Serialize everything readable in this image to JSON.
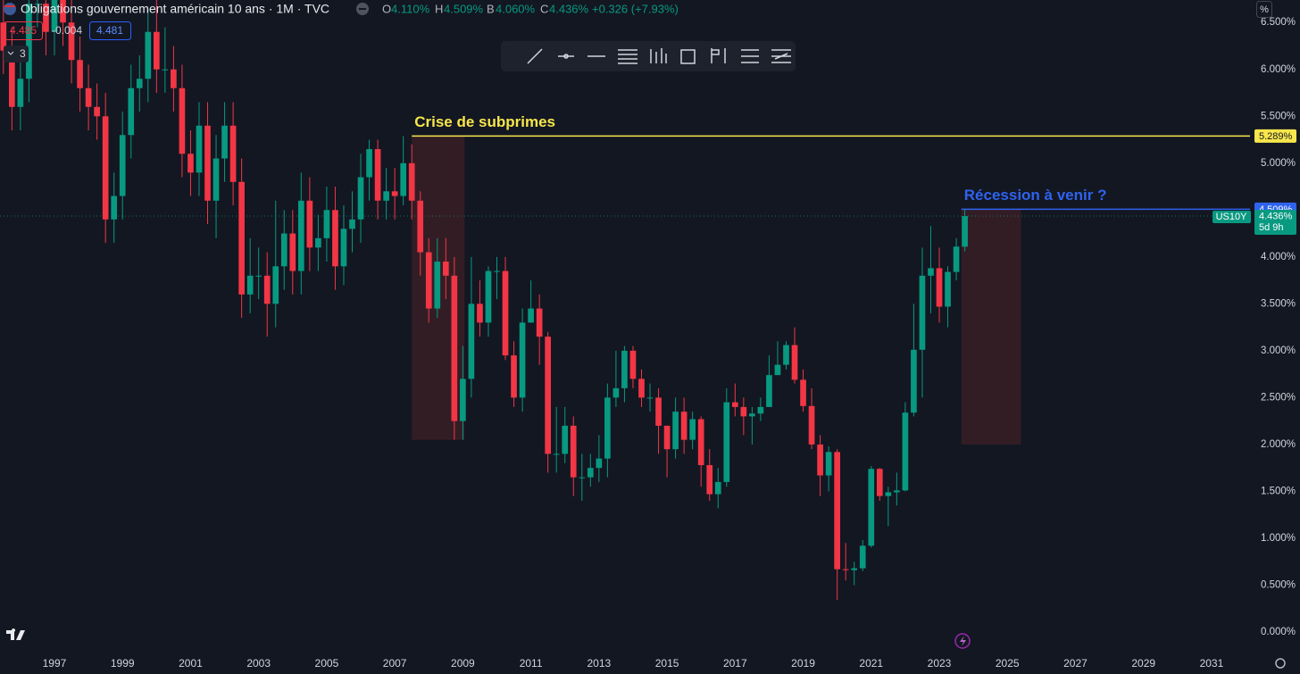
{
  "header": {
    "symbol_title": "Obligations gouvernement américain 10 ans · 1M · TVC",
    "ohlc": [
      {
        "key": "O",
        "value": "4.110%"
      },
      {
        "key": "H",
        "value": "4.509%"
      },
      {
        "key": "B",
        "value": "4.060%"
      },
      {
        "key": "C",
        "value": "4.436%"
      }
    ],
    "change": "+0.326 (+7.93%)",
    "bid": "4.485",
    "spread": "-0.004",
    "ask": "4.481",
    "indicators_count": "3",
    "scale_mode": "%"
  },
  "chart_data": {
    "type": "candlestick",
    "up_color": "#089981",
    "down_color": "#f23645",
    "grid": false,
    "x": [
      1995.5,
      1995.75,
      1996,
      1996.25,
      1996.5,
      1996.75,
      1997,
      1997.25,
      1997.5,
      1997.75,
      1998,
      1998.25,
      1998.5,
      1998.75,
      1999,
      1999.25,
      1999.5,
      1999.75,
      2000,
      2000.25,
      2000.5,
      2000.75,
      2001,
      2001.25,
      2001.5,
      2001.75,
      2002,
      2002.25,
      2002.5,
      2002.75,
      2003,
      2003.25,
      2003.5,
      2003.75,
      2004,
      2004.25,
      2004.5,
      2004.75,
      2005,
      2005.25,
      2005.5,
      2005.75,
      2006,
      2006.25,
      2006.5,
      2006.75,
      2007,
      2007.25,
      2007.5,
      2007.75,
      2008,
      2008.25,
      2008.5,
      2008.75,
      2009,
      2009.25,
      2009.5,
      2009.75,
      2010,
      2010.25,
      2010.5,
      2010.75,
      2011,
      2011.25,
      2011.5,
      2011.75,
      2012,
      2012.25,
      2012.5,
      2012.75,
      2013,
      2013.25,
      2013.5,
      2013.75,
      2014,
      2014.25,
      2014.5,
      2014.75,
      2015,
      2015.25,
      2015.5,
      2015.75,
      2016,
      2016.25,
      2016.5,
      2016.75,
      2017,
      2017.25,
      2017.5,
      2017.75,
      2018,
      2018.25,
      2018.5,
      2018.75,
      2019,
      2019.25,
      2019.5,
      2019.75,
      2020,
      2020.25,
      2020.5,
      2020.75,
      2021,
      2021.25,
      2021.5,
      2021.75,
      2022,
      2022.25,
      2022.5,
      2022.75,
      2023,
      2023.25,
      2023.5,
      2023.75
    ],
    "open": [
      6.5,
      6.2,
      5.6,
      5.9,
      6.7,
      6.7,
      6.4,
      6.9,
      6.5,
      6.1,
      5.8,
      5.6,
      5.5,
      4.4,
      4.65,
      5.3,
      5.8,
      5.9,
      6.4,
      6.0,
      6.0,
      5.8,
      5.1,
      4.9,
      5.4,
      4.6,
      5.05,
      5.4,
      4.8,
      3.6,
      3.8,
      3.8,
      3.5,
      3.9,
      4.25,
      3.85,
      4.6,
      4.1,
      4.2,
      4.5,
      3.9,
      4.3,
      4.4,
      4.85,
      5.15,
      4.6,
      4.7,
      4.65,
      5.0,
      4.6,
      4.05,
      3.45,
      3.95,
      3.8,
      2.25,
      2.7,
      3.5,
      3.3,
      3.85,
      3.85,
      2.95,
      2.5,
      3.3,
      3.45,
      3.15,
      1.9,
      1.9,
      2.2,
      1.65,
      1.65,
      1.75,
      1.85,
      2.5,
      2.6,
      3.0,
      2.7,
      2.5,
      2.5,
      2.2,
      1.95,
      2.35,
      2.05,
      2.27,
      1.78,
      1.47,
      1.6,
      2.45,
      2.4,
      2.3,
      2.33,
      2.4,
      2.74,
      2.85,
      3.06,
      2.69,
      2.41,
      2.0,
      1.67,
      1.92,
      0.67,
      0.66,
      0.68,
      0.92,
      1.74,
      1.45,
      1.49,
      1.51,
      2.34,
      3.01,
      3.8,
      3.88,
      3.47,
      3.84,
      4.11
    ],
    "high": [
      6.75,
      6.45,
      6.15,
      6.95,
      7.0,
      6.95,
      7.15,
      7.15,
      6.75,
      6.35,
      6.05,
      5.85,
      5.75,
      4.9,
      5.55,
      6.05,
      6.15,
      6.65,
      6.8,
      6.45,
      6.25,
      6.05,
      5.35,
      5.65,
      5.65,
      5.3,
      5.65,
      5.65,
      5.05,
      4.2,
      4.1,
      4.05,
      4.6,
      4.5,
      4.5,
      4.9,
      4.85,
      4.45,
      4.75,
      4.75,
      4.55,
      4.7,
      5.1,
      5.25,
      5.25,
      4.95,
      4.95,
      5.289,
      5.2,
      4.7,
      4.2,
      4.2,
      4.2,
      4.0,
      3.05,
      4.0,
      3.75,
      3.9,
      4.0,
      4.0,
      3.1,
      3.45,
      3.75,
      3.6,
      3.2,
      2.4,
      2.4,
      2.3,
      1.9,
      1.9,
      2.1,
      2.65,
      3.0,
      3.05,
      3.05,
      2.8,
      2.65,
      2.6,
      2.2,
      2.5,
      2.5,
      2.35,
      2.3,
      1.95,
      1.75,
      2.6,
      2.65,
      2.5,
      2.4,
      2.5,
      2.95,
      3.1,
      3.1,
      3.25,
      2.8,
      2.6,
      2.1,
      1.98,
      1.95,
      0.95,
      0.75,
      0.98,
      1.77,
      1.75,
      1.55,
      1.7,
      2.45,
      3.5,
      4.1,
      4.33,
      4.1,
      3.9,
      4.2,
      4.509
    ],
    "low": [
      5.95,
      5.35,
      5.35,
      5.65,
      6.45,
      6.15,
      6.15,
      6.25,
      5.85,
      5.55,
      5.35,
      5.25,
      4.15,
      4.15,
      4.4,
      5.05,
      5.55,
      5.65,
      5.75,
      5.75,
      5.55,
      4.85,
      4.65,
      4.65,
      4.35,
      4.2,
      4.8,
      4.55,
      3.35,
      3.4,
      3.55,
      3.15,
      3.25,
      3.65,
      3.6,
      3.6,
      3.85,
      3.85,
      3.95,
      3.65,
      3.7,
      4.05,
      4.15,
      4.6,
      4.4,
      4.4,
      4.4,
      4.55,
      4.4,
      3.8,
      3.3,
      3.35,
      3.55,
      2.05,
      2.05,
      2.5,
      3.15,
      3.15,
      3.55,
      2.9,
      2.4,
      2.35,
      3.3,
      2.85,
      1.7,
      1.7,
      1.8,
      1.45,
      1.4,
      1.55,
      1.6,
      1.65,
      2.4,
      2.45,
      2.6,
      2.4,
      2.35,
      1.9,
      1.65,
      1.85,
      1.9,
      1.95,
      1.55,
      1.4,
      1.32,
      1.55,
      2.3,
      2.1,
      2.0,
      2.25,
      2.4,
      2.75,
      2.8,
      2.65,
      2.35,
      1.95,
      1.45,
      1.5,
      0.34,
      0.55,
      0.5,
      0.65,
      0.9,
      1.4,
      1.13,
      1.35,
      1.5,
      2.3,
      2.5,
      3.4,
      3.3,
      3.25,
      3.75,
      4.06
    ],
    "close": [
      6.2,
      5.6,
      5.9,
      6.7,
      6.7,
      6.4,
      6.9,
      6.5,
      6.1,
      5.8,
      5.6,
      5.5,
      4.4,
      4.65,
      5.3,
      5.8,
      5.9,
      6.4,
      6.0,
      6.0,
      5.8,
      5.1,
      4.9,
      5.4,
      4.6,
      5.05,
      5.4,
      4.8,
      3.6,
      3.8,
      3.8,
      3.5,
      3.9,
      4.25,
      3.85,
      4.6,
      4.1,
      4.2,
      4.5,
      3.9,
      4.3,
      4.4,
      4.85,
      5.15,
      4.6,
      4.7,
      4.65,
      5.0,
      4.6,
      4.05,
      3.45,
      3.95,
      3.8,
      2.25,
      2.7,
      3.5,
      3.3,
      3.85,
      3.85,
      2.95,
      2.5,
      3.3,
      3.45,
      3.15,
      1.9,
      1.9,
      2.2,
      1.65,
      1.65,
      1.75,
      1.85,
      2.5,
      2.6,
      3.0,
      2.7,
      2.5,
      2.5,
      2.2,
      1.95,
      2.35,
      2.05,
      2.27,
      1.78,
      1.47,
      1.6,
      2.45,
      2.4,
      2.3,
      2.33,
      2.4,
      2.74,
      2.85,
      3.06,
      2.69,
      2.41,
      2.0,
      1.67,
      1.92,
      0.67,
      0.66,
      0.68,
      0.92,
      1.74,
      1.45,
      1.49,
      1.51,
      2.34,
      3.01,
      3.8,
      3.88,
      3.47,
      3.84,
      4.11,
      4.436
    ],
    "xlim": [
      1995.4,
      2032.13
    ],
    "ylim": [
      -0.2,
      6.74
    ],
    "xticks": [
      1997,
      1999,
      2001,
      2003,
      2005,
      2007,
      2009,
      2011,
      2013,
      2015,
      2017,
      2019,
      2021,
      2023,
      2025,
      2027,
      2029,
      2031
    ],
    "yticks": [
      {
        "value": 0,
        "label": "0.000%"
      },
      {
        "value": 0.5,
        "label": "0.500%"
      },
      {
        "value": 1,
        "label": "1.000%"
      },
      {
        "value": 1.5,
        "label": "1.500%"
      },
      {
        "value": 2,
        "label": "2.000%"
      },
      {
        "value": 2.5,
        "label": "2.500%"
      },
      {
        "value": 3,
        "label": "3.000%"
      },
      {
        "value": 3.5,
        "label": "3.500%"
      },
      {
        "value": 4,
        "label": "4.000%"
      },
      {
        "value": 4.5,
        "label": "4.500%"
      },
      {
        "value": 5,
        "label": "5.000%"
      },
      {
        "value": 5.5,
        "label": "5.500%"
      },
      {
        "value": 6,
        "label": "6.000%"
      },
      {
        "value": 6.5,
        "label": "6.500%"
      }
    ],
    "levels": [
      {
        "text": "Crise de subprimes",
        "value": 5.289,
        "value_label": "5.289%",
        "x_start": 2007.5,
        "color": "#f7e64c",
        "badge_text": "#131722"
      },
      {
        "text": "Récession à venir ?",
        "value": 4.509,
        "value_label": "4.509%",
        "x_start": 2023.65,
        "color": "#2f63ee",
        "badge_text": "#ffffff"
      }
    ],
    "zones": [
      {
        "x": [
          2007.5,
          2009.05
        ],
        "y": [
          2.05,
          5.289
        ],
        "color": "#3a1f26"
      },
      {
        "x": [
          2023.65,
          2025.4
        ],
        "y": [
          2.0,
          4.509
        ],
        "color": "#3a1f26"
      }
    ],
    "last_price": {
      "symbol": "US10Y",
      "value": 4.436,
      "value_label": "4.436%",
      "countdown": "5d 9h",
      "color": "#089981"
    }
  }
}
